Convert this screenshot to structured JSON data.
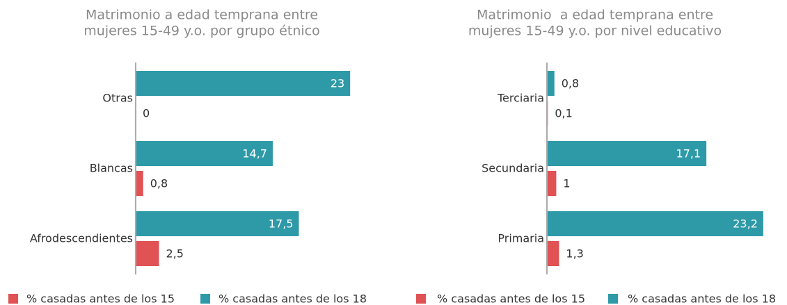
{
  "chart_data": [
    {
      "type": "bar",
      "orientation": "horizontal",
      "title": [
        "Matrimonio a edad temprana entre",
        "mujeres 15-49 y.o. por grupo étnico"
      ],
      "categories": [
        "Otras",
        "Blancas",
        "Afrodescendientes"
      ],
      "series": [
        {
          "name": "% casadas antes de los 15",
          "color": "#e05254",
          "values": [
            0,
            0.8,
            2.5
          ],
          "value_labels": [
            "0",
            "0,8",
            "2,5"
          ]
        },
        {
          "name": "% casadas antes de los 18",
          "color": "#2e9aa8",
          "values": [
            23,
            14.7,
            17.5
          ],
          "value_labels": [
            "23",
            "14,7",
            "17,5"
          ]
        }
      ],
      "xlim": [
        0,
        25
      ]
    },
    {
      "type": "bar",
      "orientation": "horizontal",
      "title": [
        "Matrimonio  a edad temprana entre",
        "mujeres 15-49 y.o. por nivel educativo"
      ],
      "categories": [
        "Terciaria",
        "Secundaria",
        "Primaria"
      ],
      "series": [
        {
          "name": "% casadas antes de los 15",
          "color": "#e05254",
          "values": [
            0.1,
            1,
            1.3
          ],
          "value_labels": [
            "0,1",
            "1",
            "1,3"
          ]
        },
        {
          "name": "% casadas antes de los 18",
          "color": "#2e9aa8",
          "values": [
            0.8,
            17.1,
            23.2
          ],
          "value_labels": [
            "0,8",
            "17,1",
            "23,2"
          ]
        }
      ],
      "xlim": [
        0,
        25
      ]
    }
  ]
}
